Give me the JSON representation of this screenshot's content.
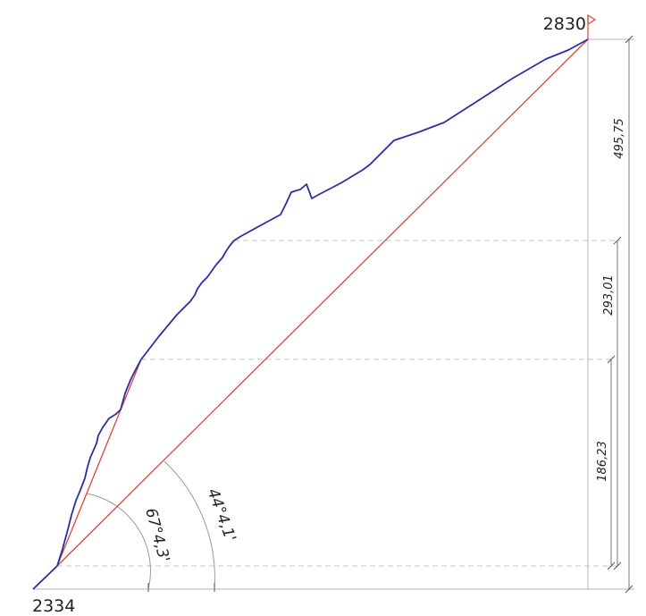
{
  "elevations": {
    "bottom": "2334",
    "top": "2830"
  },
  "dimensions": {
    "total": "495,75",
    "middle": "293,01",
    "lower": "186,23"
  },
  "angles": {
    "steep": "67°4,3'",
    "overall": "44°4,1'"
  },
  "colors": {
    "profile": "#2b2fa0",
    "chord": "#d9463a",
    "flag": "#d9463a"
  }
}
